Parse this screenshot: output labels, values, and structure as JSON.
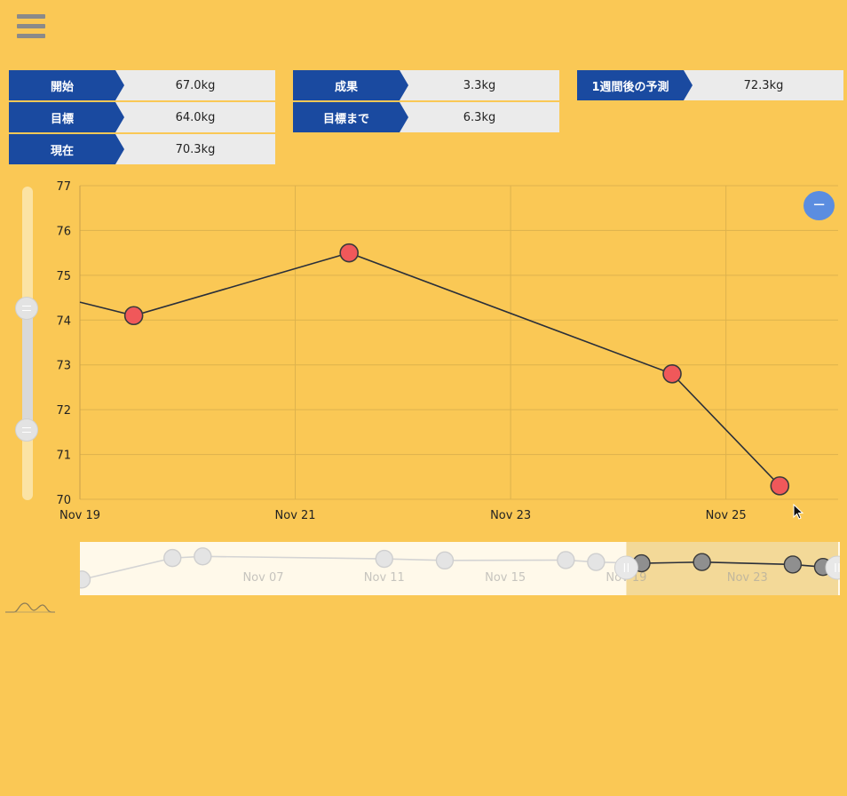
{
  "stats": [
    {
      "label": "開始",
      "value": "67.0kg"
    },
    {
      "label": "目標",
      "value": "64.0kg"
    },
    {
      "label": "現在",
      "value": "70.3kg"
    },
    {
      "label": "成果",
      "value": "3.3kg"
    },
    {
      "label": "目標まで",
      "value": "6.3kg"
    },
    {
      "label": "1週間後の予測",
      "value": "72.3kg"
    }
  ],
  "zoom_out_label": "−",
  "colors": {
    "background": "#fac855",
    "label_bg": "#1a4aa0",
    "marker": "#f0585a",
    "line": "#2a2f3a",
    "zoom_button": "#5b8de0"
  },
  "chart_data": [
    {
      "type": "line",
      "title": "",
      "xlabel": "",
      "ylabel": "",
      "x_ticks": [
        "Nov 19",
        "Nov 21",
        "Nov 23",
        "Nov 25"
      ],
      "y_ticks": [
        70,
        71,
        72,
        73,
        74,
        75,
        76,
        77
      ],
      "ylim": [
        70,
        77
      ],
      "xlim": [
        "2017-11-19",
        "2017-11-26T01:00"
      ],
      "grid": true,
      "series": [
        {
          "values": [
            {
              "x": "2017-11-19T00:00",
              "y": 74.4
            },
            {
              "x": "2017-11-19T12:00",
              "y": 74.1
            },
            {
              "x": "2017-11-21T12:00",
              "y": 75.5
            },
            {
              "x": "2017-11-24T12:00",
              "y": 72.8
            },
            {
              "x": "2017-11-25T12:00",
              "y": 70.3
            }
          ]
        }
      ]
    },
    {
      "type": "line",
      "title": "",
      "x_ticks": [
        "Nov 07",
        "Nov 11",
        "Nov 15",
        "Nov 19",
        "Nov 23"
      ],
      "xlim": [
        "2017-11-01",
        "2017-11-26"
      ],
      "ylim": [
        64,
        78
      ],
      "selected_range": [
        "2017-11-19",
        "2017-11-26"
      ],
      "series": [
        {
          "values": [
            {
              "x": "2017-11-01",
              "y": 68.3
            },
            {
              "x": "2017-11-04",
              "y": 73.6
            },
            {
              "x": "2017-11-05",
              "y": 74.0
            },
            {
              "x": "2017-11-11",
              "y": 73.4
            },
            {
              "x": "2017-11-13",
              "y": 73.0
            },
            {
              "x": "2017-11-17",
              "y": 73.1
            },
            {
              "x": "2017-11-18",
              "y": 72.6
            },
            {
              "x": "2017-11-19T12:00",
              "y": 72.3
            },
            {
              "x": "2017-11-21T12:00",
              "y": 72.6
            },
            {
              "x": "2017-11-24T12:00",
              "y": 72.0
            },
            {
              "x": "2017-11-25T12:00",
              "y": 71.4
            }
          ]
        }
      ]
    }
  ]
}
